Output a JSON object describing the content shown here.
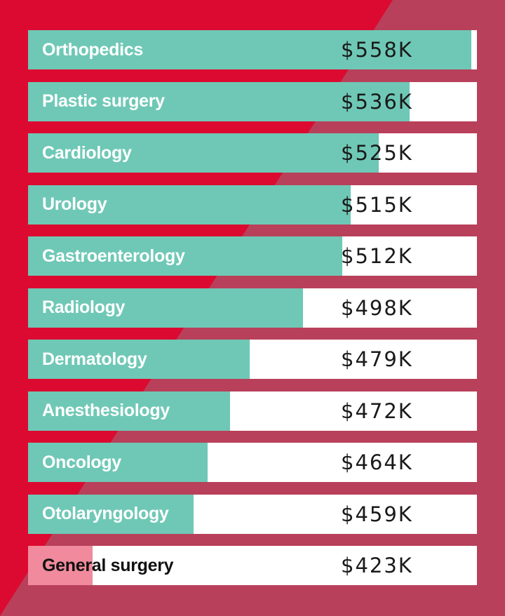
{
  "colors": {
    "background": "#dc0a30",
    "background_stripe": "#b8405a",
    "bar_fill": "#6fc8b6",
    "bar_fill_highlight": "#f08a9c",
    "bar_track": "#ffffff"
  },
  "chart_data": {
    "type": "bar",
    "orientation": "horizontal",
    "categories": [
      "Orthopedics",
      "Plastic surgery",
      "Cardiology",
      "Urology",
      "Gastroenterology",
      "Radiology",
      "Dermatology",
      "Anesthesiology",
      "Oncology",
      "Otolaryngology",
      "General surgery"
    ],
    "values": [
      558,
      536,
      525,
      515,
      512,
      498,
      479,
      472,
      464,
      459,
      423
    ],
    "value_labels": [
      "$558K",
      "$536K",
      "$525K",
      "$515K",
      "$512K",
      "$498K",
      "$479K",
      "$472K",
      "$464K",
      "$459K",
      "$423K"
    ],
    "unit": "$K",
    "xlim": [
      400,
      560
    ],
    "highlighted_category": "General surgery",
    "grid": false,
    "legend": false
  }
}
